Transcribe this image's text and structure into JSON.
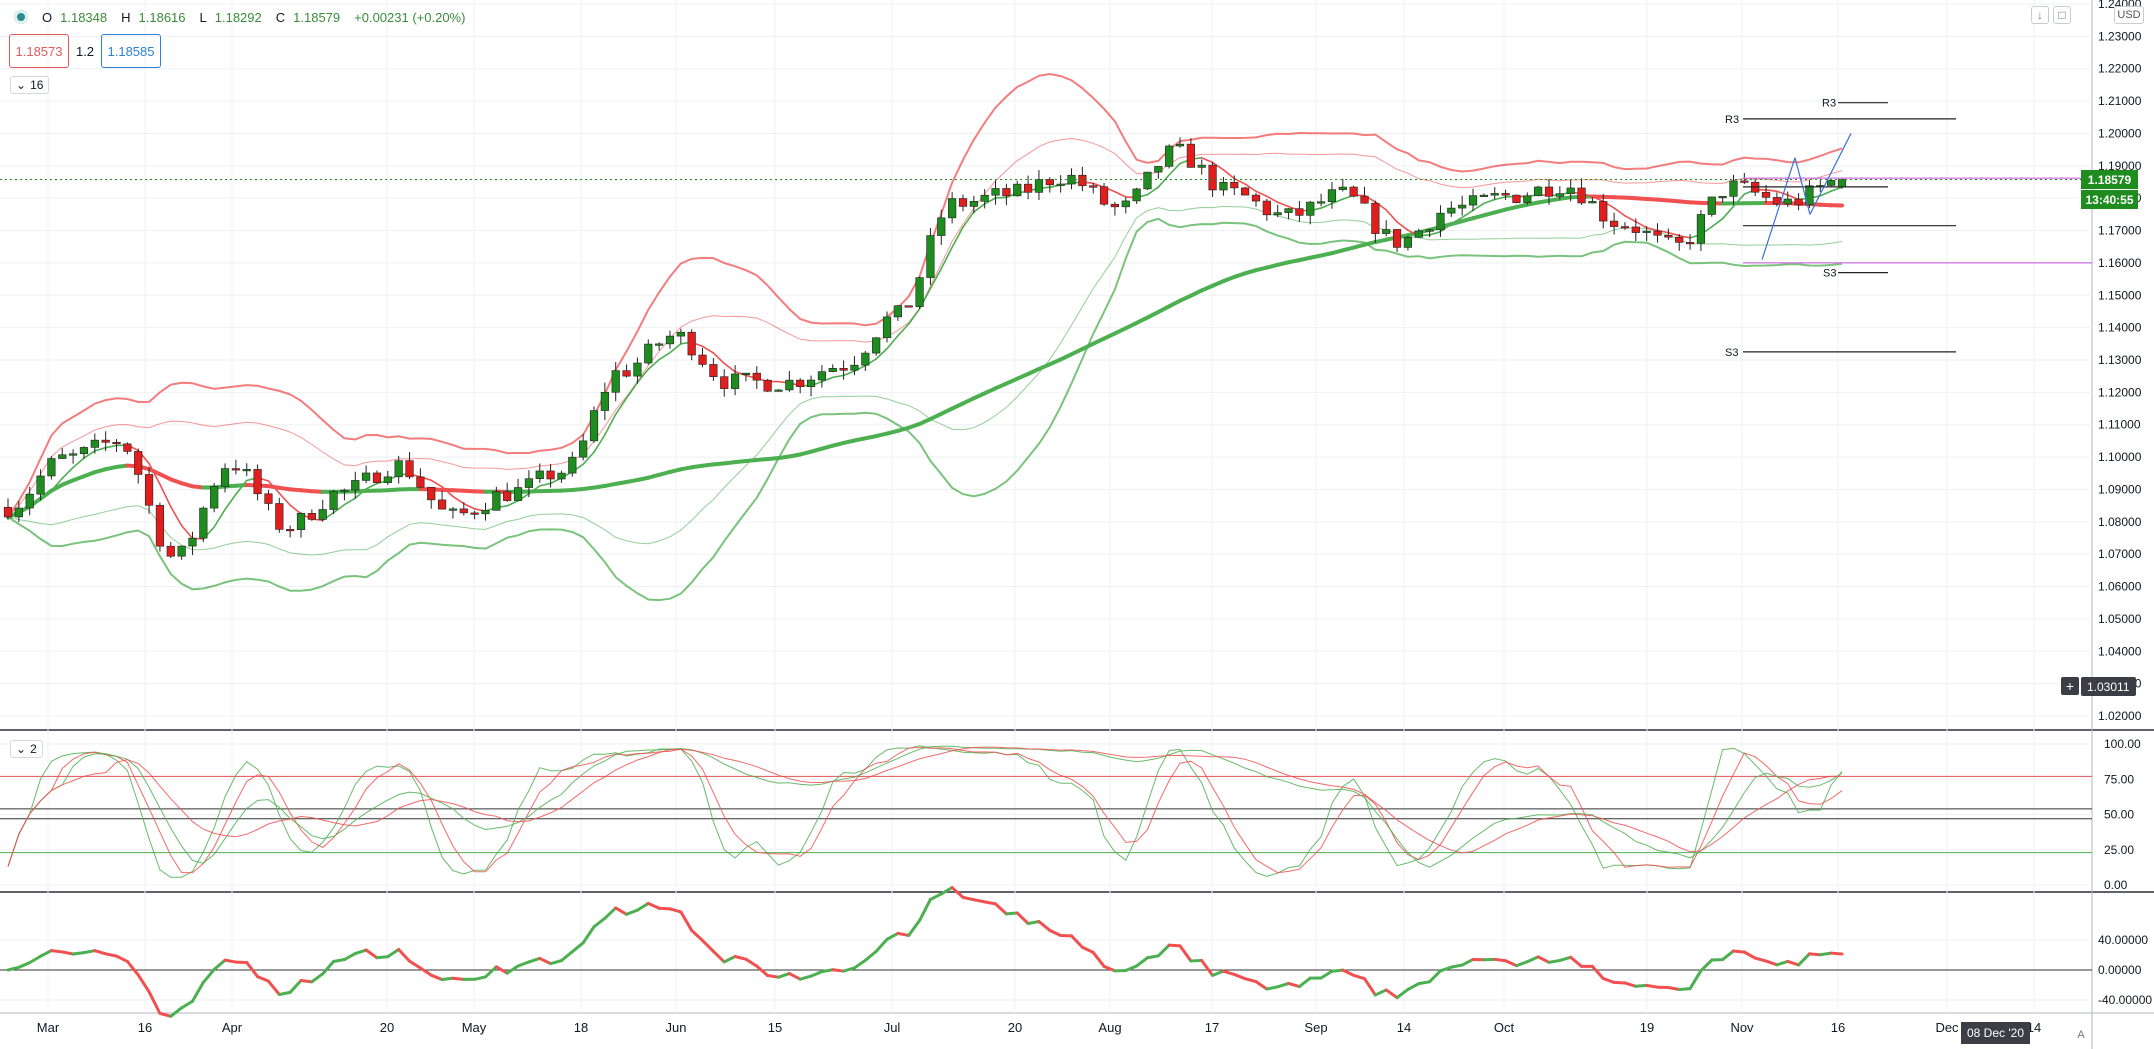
{
  "ohlc_header": {
    "open_label": "O",
    "open_value": "1.18348",
    "high_label": "H",
    "high_value": "1.18616",
    "low_label": "L",
    "low_value": "1.18292",
    "close_label": "C",
    "close_value": "1.18579",
    "change": "+0.00231 (+0.20%)"
  },
  "trade": {
    "sell_price": "1.18573",
    "spread": "1.2",
    "buy_price": "1.18585"
  },
  "pane_headers": {
    "main_count": "16",
    "oscillator_count": "2"
  },
  "currency": "USD",
  "top_right_icons": [
    "arrow-down-icon",
    "maximize-icon"
  ],
  "price_badges": {
    "last_price": "1.18579",
    "countdown": "13:40:55",
    "crosshair_price": "1.03011",
    "crosshair_date": "08 Dec '20"
  },
  "colors": {
    "up": "#1e8c1e",
    "down": "#e01e1e",
    "ma_red": "#f05050",
    "ma_green": "#4caf50",
    "pivot_magenta": "#d070e0",
    "trend_blue": "#3a6fd8"
  },
  "price_axis": [
    "1.24000",
    "1.23000",
    "1.22000",
    "1.21000",
    "1.20000",
    "1.19000",
    "1.18000",
    "1.17000",
    "1.16000",
    "1.15000",
    "1.14000",
    "1.13000",
    "1.12000",
    "1.11000",
    "1.10000",
    "1.09000",
    "1.08000",
    "1.07000",
    "1.06000",
    "1.05000",
    "1.04000",
    "1.03000",
    "1.02000"
  ],
  "osc_axis": [
    "100.00",
    "75.00",
    "50.00",
    "25.00",
    "0.00"
  ],
  "mom_axis": [
    "40.00000",
    "0.00000",
    "-40.00000"
  ],
  "time_axis": [
    "Mar",
    "16",
    "Apr",
    "20",
    "May",
    "18",
    "Jun",
    "15",
    "Jul",
    "20",
    "Aug",
    "17",
    "Sep",
    "14",
    "Oct",
    "19",
    "Nov",
    "16",
    "Dec",
    "14",
    "A"
  ],
  "pivots": {
    "r3_upper": "R3",
    "r3_lower": "R3",
    "s3_upper": "S3",
    "s3_lower": "S3"
  },
  "chart_data": {
    "type": "candlestick",
    "symbol_note": "",
    "ylim": [
      1.02,
      1.24
    ],
    "sample_closes": [
      1.0845,
      1.0995,
      1.1049,
      1.0688,
      1.0982,
      1.0784,
      1.0892,
      1.0975,
      1.0816,
      1.0889,
      1.0957,
      1.1263,
      1.1375,
      1.1232,
      1.1231,
      1.1284,
      1.1438,
      1.1781,
      1.1811,
      1.1868,
      1.1766,
      1.1943,
      1.1816,
      1.1743,
      1.181,
      1.1666,
      1.1769,
      1.1807,
      1.1842,
      1.1724,
      1.1648,
      1.1835,
      1.1785,
      1.1858
    ],
    "oscillator_ylim": [
      0,
      100
    ],
    "oscillator_levels": [
      77,
      54,
      47,
      23
    ],
    "momentum_ylim": [
      -40,
      40
    ],
    "grid": true
  }
}
